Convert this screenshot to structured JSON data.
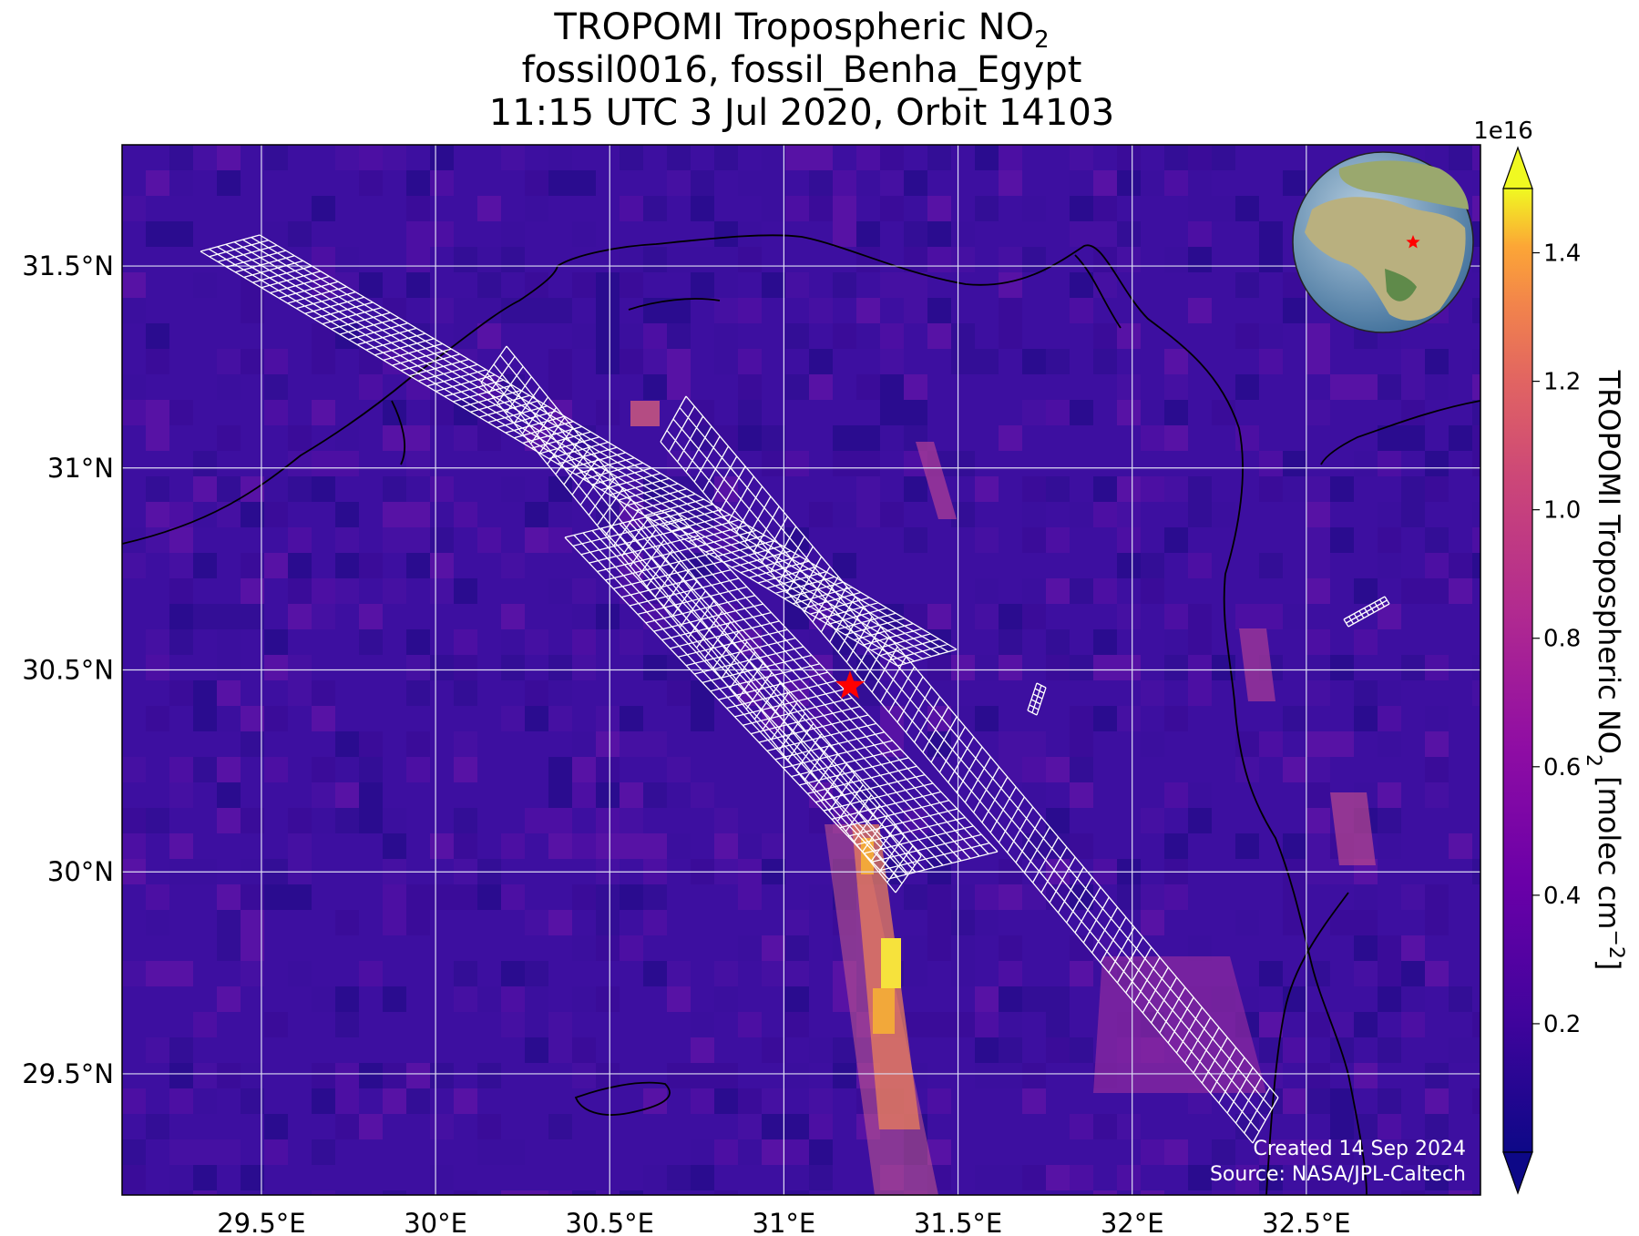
{
  "title": {
    "line1_prefix": "TROPOMI Tropospheric NO",
    "line1_sub": "2",
    "line2": "fossil0016, fossil_Benha_Egypt",
    "line3": "11:15 UTC 3 Jul 2020, Orbit 14103"
  },
  "map": {
    "lon_range": [
      29.1,
      33.0
    ],
    "lat_range": [
      29.2,
      31.8
    ],
    "x_ticks": [
      "29.5°E",
      "30°E",
      "30.5°E",
      "31°E",
      "31.5°E",
      "32°E",
      "32.5°E"
    ],
    "x_tick_values": [
      29.5,
      30.0,
      30.5,
      31.0,
      31.5,
      32.0,
      32.5
    ],
    "y_ticks": [
      "31.5°N",
      "31°N",
      "30.5°N",
      "30°N",
      "29.5°N"
    ],
    "y_tick_values": [
      31.5,
      31.0,
      30.5,
      30.0,
      29.5
    ],
    "gridlines": true,
    "site_marker": {
      "lon": 31.19,
      "lat": 30.46,
      "color": "#ff0000",
      "shape": "star-icon"
    },
    "background_color": "#3d0fa0",
    "plume_color": "#f2a83a",
    "coastline_color": "#000000",
    "target_grid_color": "#ffffff"
  },
  "colorbar": {
    "label_prefix": "TROPOMI Tropospheric NO",
    "label_sub": "2",
    "label_units": " [molec cm",
    "label_exp": "−2",
    "label_close": "]",
    "scale": "1e16",
    "ticks": [
      "0.2",
      "0.4",
      "0.6",
      "0.8",
      "1.0",
      "1.2",
      "1.4"
    ],
    "tick_values": [
      0.2,
      0.4,
      0.6,
      0.8,
      1.0,
      1.2,
      1.4
    ],
    "range": [
      0.0,
      1.5
    ],
    "colormap": "plasma"
  },
  "inset_globe": {
    "marker_color": "#ff0000"
  },
  "credits": {
    "created": "Created 14 Sep 2024",
    "source": "Source: NASA/JPL-Caltech"
  }
}
